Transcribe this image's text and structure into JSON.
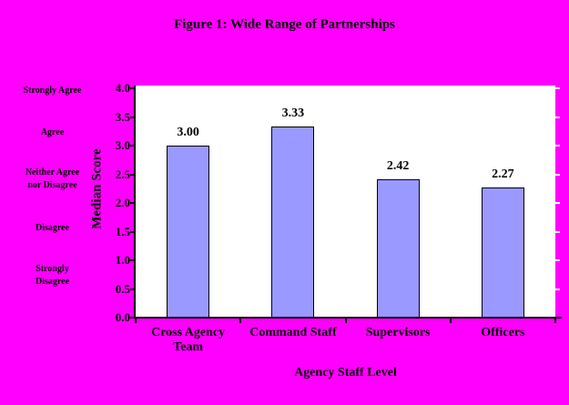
{
  "chart": {
    "title": "Figure 1: Wide Range of Partnerships",
    "xlabel": "Agency Staff Level",
    "ylabel": "Median Score"
  },
  "agreement_scale": {
    "items": [
      {
        "lines": [
          "Strongly Agree"
        ]
      },
      {
        "lines": [
          "Agree"
        ]
      },
      {
        "lines": [
          "Neither Agree",
          "nor Disagree"
        ]
      },
      {
        "lines": [
          "Disagree"
        ]
      },
      {
        "lines": [
          "Strongly",
          "Disagree"
        ]
      }
    ]
  },
  "chart_data": {
    "type": "bar",
    "title": "Figure 1: Wide Range of Partnerships",
    "xlabel": "Agency Staff Level",
    "ylabel": "Median Score",
    "categories": [
      "Cross Agency Team",
      "Command Staff",
      "Supervisors",
      "Officers"
    ],
    "category_lines": [
      [
        "Cross Agency",
        "Team"
      ],
      [
        "Command Staff"
      ],
      [
        "Supervisors"
      ],
      [
        "Officers"
      ]
    ],
    "values": [
      3.0,
      3.33,
      2.42,
      2.27
    ],
    "value_labels": [
      "3.00",
      "3.33",
      "2.42",
      "2.27"
    ],
    "ylim": [
      0,
      4
    ],
    "ytick_step": 0.5,
    "ytick_labels": [
      "0.0",
      "0.5",
      "1.0",
      "1.5",
      "2.0",
      "2.5",
      "3.0",
      "3.5",
      "4.0"
    ],
    "grid": false,
    "legend": false,
    "left_annotations": [
      "Strongly Agree",
      "Agree",
      "Neither Agree nor Disagree",
      "Disagree",
      "Strongly Disagree"
    ],
    "colors": {
      "background": "#FF00FF",
      "plot_background": "#FFFFFF",
      "bar_fill": "#9999FF",
      "bar_border": "#000000",
      "axis": "#000000",
      "text": "#000000"
    }
  }
}
